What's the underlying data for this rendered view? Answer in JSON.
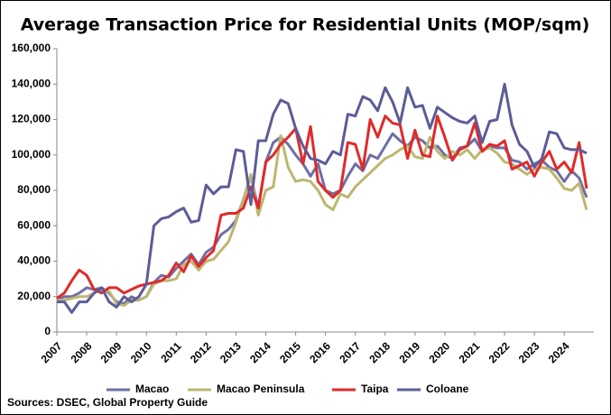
{
  "chart_data": {
    "type": "line",
    "title": "Average Transaction Price for Residential Units (MOP/sqm)",
    "source": "Sources: DSEC, Global Property Guide",
    "categories": [
      "2007",
      null,
      null,
      null,
      "2008",
      null,
      null,
      null,
      "2009",
      null,
      null,
      null,
      "2010",
      null,
      null,
      null,
      "2011",
      null,
      null,
      null,
      "2012",
      null,
      null,
      null,
      "2013",
      null,
      null,
      null,
      "2014",
      null,
      null,
      null,
      "2015",
      null,
      null,
      null,
      "2016",
      null,
      null,
      null,
      "2017",
      null,
      null,
      null,
      "2018",
      null,
      null,
      null,
      "2019",
      null,
      null,
      null,
      "2020",
      null,
      null,
      null,
      "2021",
      null,
      null,
      null,
      "2022",
      null,
      null,
      null,
      "2023",
      null,
      null,
      null,
      "2024",
      null,
      null,
      null
    ],
    "series": [
      {
        "name": "Macao",
        "color": "#6f6fa6",
        "values": [
          18000,
          20000,
          20000,
          22000,
          25000,
          24000,
          25000,
          22000,
          17000,
          16000,
          20000,
          18000,
          20000,
          28000,
          32000,
          31000,
          36000,
          40000,
          44000,
          38000,
          45000,
          48000,
          55000,
          58000,
          63000,
          75000,
          88000,
          70000,
          96000,
          107000,
          110000,
          106000,
          100000,
          95000,
          88000,
          95000,
          80000,
          78000,
          80000,
          88000,
          95000,
          91000,
          100000,
          98000,
          105000,
          112000,
          108000,
          105000,
          110000,
          108000,
          104000,
          105000,
          100000,
          98000,
          104000,
          105000,
          109000,
          102000,
          105000,
          104000,
          104000,
          97000,
          96000,
          92000,
          95000,
          97000,
          93000,
          91000,
          85000,
          91000,
          87000,
          76000
        ]
      },
      {
        "name": "Macao Peninsula",
        "color": "#bdb66f",
        "values": [
          18000,
          18000,
          19000,
          20000,
          20000,
          22000,
          24000,
          23000,
          16000,
          15000,
          18000,
          18000,
          20000,
          27000,
          29000,
          29000,
          30000,
          38000,
          40000,
          35000,
          40000,
          41000,
          46000,
          51000,
          62000,
          75000,
          89000,
          66000,
          80000,
          82000,
          111000,
          93000,
          85000,
          86000,
          85000,
          80000,
          72000,
          69000,
          78000,
          76000,
          82000,
          86000,
          90000,
          94000,
          98000,
          100000,
          103000,
          105000,
          99000,
          98000,
          110000,
          102000,
          98000,
          102000,
          100000,
          103000,
          98000,
          103000,
          104000,
          101000,
          96000,
          95000,
          92000,
          89000,
          92000,
          93000,
          92000,
          87000,
          81000,
          80000,
          84000,
          69000
        ]
      },
      {
        "name": "Taipa",
        "color": "#e02a2a",
        "values": [
          19000,
          22000,
          29000,
          35000,
          32000,
          24000,
          22000,
          25000,
          25000,
          22000,
          24000,
          26000,
          27000,
          28000,
          29000,
          32000,
          39000,
          34000,
          43000,
          37000,
          42000,
          46000,
          66000,
          67000,
          67000,
          70000,
          82000,
          70000,
          96000,
          100000,
          106000,
          110000,
          115000,
          95000,
          116000,
          85000,
          80000,
          76000,
          80000,
          107000,
          106000,
          92000,
          120000,
          110000,
          122000,
          118000,
          117000,
          98000,
          114000,
          100000,
          99000,
          122000,
          110000,
          97000,
          103000,
          105000,
          118000,
          102000,
          106000,
          105000,
          108000,
          92000,
          94000,
          96000,
          88000,
          96000,
          102000,
          92000,
          96000,
          90000,
          107000,
          81000
        ]
      },
      {
        "name": "Coloane",
        "color": "#5c5c98",
        "values": [
          17000,
          17000,
          11000,
          17000,
          17000,
          22000,
          25000,
          17000,
          14000,
          20000,
          17000,
          20000,
          27000,
          60000,
          64000,
          65000,
          68000,
          70000,
          62000,
          63000,
          83000,
          78000,
          82000,
          82000,
          103000,
          102000,
          72000,
          108000,
          108000,
          123000,
          131000,
          129000,
          115000,
          105000,
          98000,
          97000,
          95000,
          102000,
          100000,
          123000,
          122000,
          133000,
          131000,
          125000,
          138000,
          130000,
          118000,
          138000,
          127000,
          128000,
          115000,
          127000,
          124000,
          121000,
          119000,
          118000,
          122000,
          107000,
          119000,
          120000,
          140000,
          117000,
          106000,
          102000,
          93000,
          98000,
          113000,
          112000,
          104000,
          103000,
          103000,
          101000
        ]
      }
    ],
    "ylim": [
      0,
      160000
    ],
    "yticks": [
      0,
      {
        "value": 20000,
        "label": "20,000"
      },
      {
        "value": 40000,
        "label": "40,000"
      },
      {
        "value": 60000,
        "label": "60,000"
      },
      {
        "value": 80000,
        "label": "80,000"
      },
      {
        "value": 100000,
        "label": "100,000"
      },
      {
        "value": 120000,
        "label": "120,000"
      },
      {
        "value": 140000,
        "label": "140,000"
      },
      {
        "value": 160000,
        "label": "160,000"
      }
    ],
    "grid": false
  }
}
